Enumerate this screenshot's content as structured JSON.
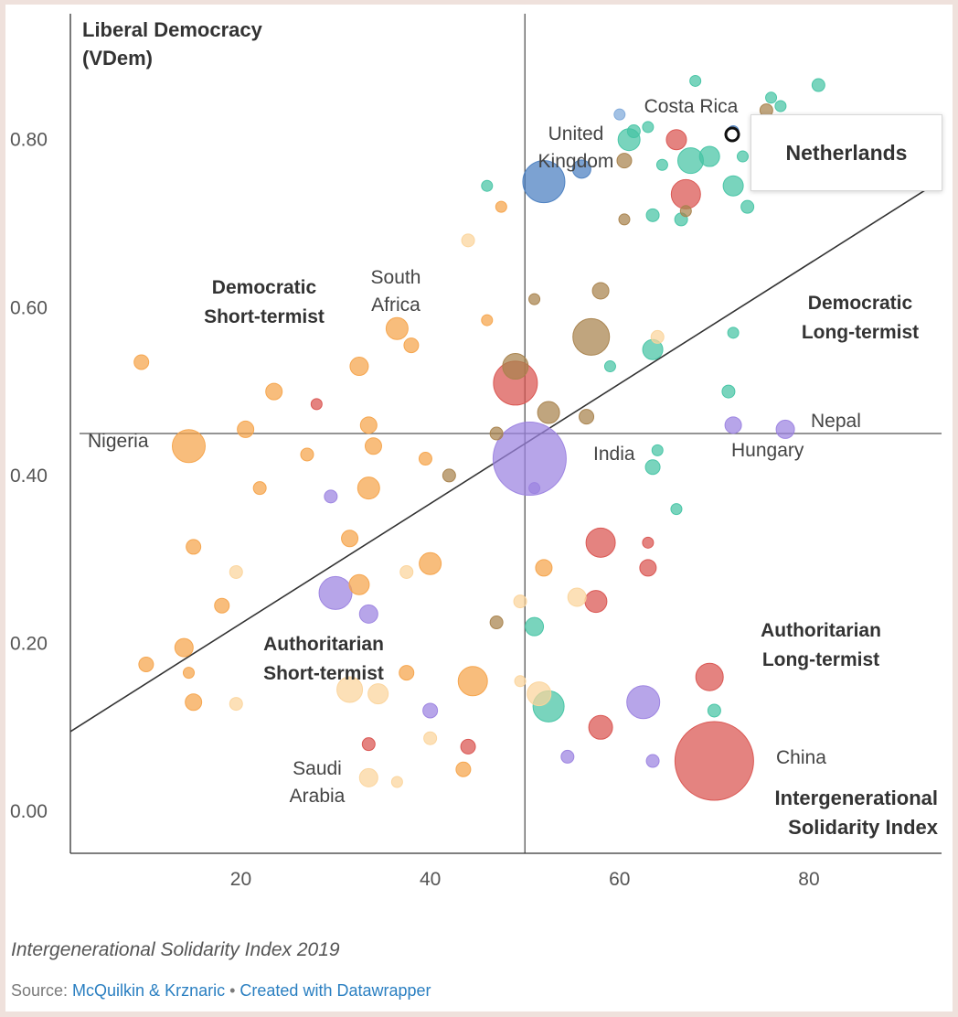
{
  "chart_data": {
    "type": "scatter",
    "ylabel_line1": "Liberal Democracy",
    "ylabel_line2": "(VDem)",
    "xlabel_line1": "Intergenerational",
    "xlabel_line2": "Solidarity Index",
    "xlim": [
      2,
      94
    ],
    "ylim": [
      -0.05,
      0.95
    ],
    "xticks": [
      20,
      40,
      60,
      80
    ],
    "yticks": [
      0.0,
      0.2,
      0.4,
      0.6,
      0.8
    ],
    "ytick_labels": [
      "0.00",
      "0.20",
      "0.40",
      "0.60",
      "0.80"
    ],
    "reference_lines": {
      "x": 50,
      "y": 0.45,
      "diagonal": [
        [
          2,
          0.095
        ],
        [
          93,
          0.745
        ]
      ]
    },
    "colors": {
      "orange": "#f5a34a",
      "light_orange": "#fbd49b",
      "teal": "#45c4a4",
      "red": "#d9534f",
      "brown": "#a8824c",
      "purple": "#9b82e0",
      "blue": "#4a7ec0",
      "light_blue": "#7ea9da"
    },
    "quadrant_labels": [
      {
        "line1": "Democratic",
        "line2": "Short-termist"
      },
      {
        "line1": "Democratic",
        "line2": "Long-termist"
      },
      {
        "line1": "Authoritarian",
        "line2": "Short-termist"
      },
      {
        "line1": "Authoritarian",
        "line2": "Long-termist"
      }
    ],
    "labeled_countries": [
      {
        "line1": "Costa Rica",
        "line2": ""
      },
      {
        "line1": "United",
        "line2": "Kingdom"
      },
      {
        "line1": "South",
        "line2": "Africa"
      },
      {
        "line1": "Nigeria",
        "line2": ""
      },
      {
        "line1": "India",
        "line2": ""
      },
      {
        "line1": "Hungary",
        "line2": ""
      },
      {
        "line1": "Nepal",
        "line2": ""
      },
      {
        "line1": "China",
        "line2": ""
      },
      {
        "line1": "Saudi",
        "line2": "Arabia"
      }
    ],
    "highlight": "Netherlands",
    "points": [
      {
        "x": 50.5,
        "y": 0.42,
        "s": 40,
        "c": "purple"
      },
      {
        "x": 70,
        "y": 0.06,
        "s": 43,
        "c": "red"
      },
      {
        "x": 52,
        "y": 0.75,
        "s": 23,
        "c": "blue"
      },
      {
        "x": 14.5,
        "y": 0.435,
        "s": 18,
        "c": "orange"
      },
      {
        "x": 57,
        "y": 0.565,
        "s": 20,
        "c": "brown"
      },
      {
        "x": 49,
        "y": 0.51,
        "s": 24,
        "c": "red"
      },
      {
        "x": 49,
        "y": 0.53,
        "s": 14,
        "c": "brown"
      },
      {
        "x": 30,
        "y": 0.26,
        "s": 18,
        "c": "purple"
      },
      {
        "x": 62.5,
        "y": 0.13,
        "s": 18,
        "c": "purple"
      },
      {
        "x": 52.5,
        "y": 0.125,
        "s": 17,
        "c": "teal"
      },
      {
        "x": 51.5,
        "y": 0.14,
        "s": 13,
        "c": "light_orange"
      },
      {
        "x": 44.5,
        "y": 0.155,
        "s": 16,
        "c": "orange"
      },
      {
        "x": 31.5,
        "y": 0.145,
        "s": 14,
        "c": "light_orange"
      },
      {
        "x": 34.5,
        "y": 0.14,
        "s": 11,
        "c": "light_orange"
      },
      {
        "x": 69.5,
        "y": 0.16,
        "s": 15,
        "c": "red"
      },
      {
        "x": 58,
        "y": 0.32,
        "s": 16,
        "c": "red"
      },
      {
        "x": 57.5,
        "y": 0.25,
        "s": 12,
        "c": "red"
      },
      {
        "x": 58,
        "y": 0.1,
        "s": 13,
        "c": "red"
      },
      {
        "x": 67,
        "y": 0.735,
        "s": 16,
        "c": "red"
      },
      {
        "x": 66,
        "y": 0.8,
        "s": 11,
        "c": "red"
      },
      {
        "x": 61,
        "y": 0.8,
        "s": 12,
        "c": "teal"
      },
      {
        "x": 67.5,
        "y": 0.775,
        "s": 14,
        "c": "teal"
      },
      {
        "x": 69.5,
        "y": 0.78,
        "s": 11,
        "c": "teal"
      },
      {
        "x": 72,
        "y": 0.745,
        "s": 11,
        "c": "teal"
      },
      {
        "x": 63.5,
        "y": 0.55,
        "s": 11,
        "c": "teal"
      },
      {
        "x": 36.5,
        "y": 0.575,
        "s": 12,
        "c": "orange"
      },
      {
        "x": 38,
        "y": 0.555,
        "s": 8,
        "c": "orange"
      },
      {
        "x": 32.5,
        "y": 0.53,
        "s": 10,
        "c": "orange"
      },
      {
        "x": 9.5,
        "y": 0.535,
        "s": 8,
        "c": "orange"
      },
      {
        "x": 23.5,
        "y": 0.5,
        "s": 9,
        "c": "orange"
      },
      {
        "x": 28,
        "y": 0.485,
        "s": 6,
        "c": "red"
      },
      {
        "x": 20.5,
        "y": 0.455,
        "s": 9,
        "c": "orange"
      },
      {
        "x": 33.5,
        "y": 0.46,
        "s": 9,
        "c": "orange"
      },
      {
        "x": 34,
        "y": 0.435,
        "s": 9,
        "c": "orange"
      },
      {
        "x": 27,
        "y": 0.425,
        "s": 7,
        "c": "orange"
      },
      {
        "x": 39.5,
        "y": 0.42,
        "s": 7,
        "c": "orange"
      },
      {
        "x": 22,
        "y": 0.385,
        "s": 7,
        "c": "orange"
      },
      {
        "x": 33.5,
        "y": 0.385,
        "s": 12,
        "c": "orange"
      },
      {
        "x": 29.5,
        "y": 0.375,
        "s": 7,
        "c": "purple"
      },
      {
        "x": 42,
        "y": 0.4,
        "s": 7,
        "c": "brown"
      },
      {
        "x": 47,
        "y": 0.45,
        "s": 7,
        "c": "brown"
      },
      {
        "x": 52.5,
        "y": 0.475,
        "s": 12,
        "c": "brown"
      },
      {
        "x": 56.5,
        "y": 0.47,
        "s": 8,
        "c": "brown"
      },
      {
        "x": 51,
        "y": 0.385,
        "s": 6,
        "c": "purple"
      },
      {
        "x": 15,
        "y": 0.315,
        "s": 8,
        "c": "orange"
      },
      {
        "x": 19.5,
        "y": 0.285,
        "s": 7,
        "c": "light_orange"
      },
      {
        "x": 31.5,
        "y": 0.325,
        "s": 9,
        "c": "orange"
      },
      {
        "x": 32.5,
        "y": 0.27,
        "s": 11,
        "c": "orange"
      },
      {
        "x": 40,
        "y": 0.295,
        "s": 12,
        "c": "orange"
      },
      {
        "x": 37.5,
        "y": 0.285,
        "s": 7,
        "c": "light_orange"
      },
      {
        "x": 52,
        "y": 0.29,
        "s": 9,
        "c": "orange"
      },
      {
        "x": 33.5,
        "y": 0.235,
        "s": 10,
        "c": "purple"
      },
      {
        "x": 18,
        "y": 0.245,
        "s": 8,
        "c": "orange"
      },
      {
        "x": 14,
        "y": 0.195,
        "s": 10,
        "c": "orange"
      },
      {
        "x": 10,
        "y": 0.175,
        "s": 8,
        "c": "orange"
      },
      {
        "x": 14.5,
        "y": 0.165,
        "s": 6,
        "c": "orange"
      },
      {
        "x": 15,
        "y": 0.13,
        "s": 9,
        "c": "orange"
      },
      {
        "x": 19.5,
        "y": 0.128,
        "s": 7,
        "c": "light_orange"
      },
      {
        "x": 37.5,
        "y": 0.165,
        "s": 8,
        "c": "orange"
      },
      {
        "x": 40,
        "y": 0.12,
        "s": 8,
        "c": "purple"
      },
      {
        "x": 49.5,
        "y": 0.155,
        "s": 6,
        "c": "light_orange"
      },
      {
        "x": 49.5,
        "y": 0.25,
        "s": 7,
        "c": "light_orange"
      },
      {
        "x": 55.5,
        "y": 0.255,
        "s": 10,
        "c": "light_orange"
      },
      {
        "x": 51,
        "y": 0.22,
        "s": 10,
        "c": "teal"
      },
      {
        "x": 47,
        "y": 0.225,
        "s": 7,
        "c": "brown"
      },
      {
        "x": 54.5,
        "y": 0.065,
        "s": 7,
        "c": "purple"
      },
      {
        "x": 63.5,
        "y": 0.06,
        "s": 7,
        "c": "purple"
      },
      {
        "x": 33.5,
        "y": 0.08,
        "s": 7,
        "c": "red"
      },
      {
        "x": 40,
        "y": 0.087,
        "s": 7,
        "c": "light_orange"
      },
      {
        "x": 44,
        "y": 0.077,
        "s": 8,
        "c": "red"
      },
      {
        "x": 43.5,
        "y": 0.05,
        "s": 8,
        "c": "orange"
      },
      {
        "x": 33.5,
        "y": 0.04,
        "s": 10,
        "c": "light_orange"
      },
      {
        "x": 36.5,
        "y": 0.035,
        "s": 6,
        "c": "light_orange"
      },
      {
        "x": 63,
        "y": 0.32,
        "s": 6,
        "c": "red"
      },
      {
        "x": 63,
        "y": 0.29,
        "s": 9,
        "c": "red"
      },
      {
        "x": 66,
        "y": 0.36,
        "s": 6,
        "c": "teal"
      },
      {
        "x": 63.5,
        "y": 0.41,
        "s": 8,
        "c": "teal"
      },
      {
        "x": 64,
        "y": 0.43,
        "s": 6,
        "c": "teal"
      },
      {
        "x": 59,
        "y": 0.53,
        "s": 6,
        "c": "teal"
      },
      {
        "x": 64,
        "y": 0.565,
        "s": 7,
        "c": "light_orange"
      },
      {
        "x": 71.5,
        "y": 0.5,
        "s": 7,
        "c": "teal"
      },
      {
        "x": 72,
        "y": 0.57,
        "s": 6,
        "c": "teal"
      },
      {
        "x": 72,
        "y": 0.46,
        "s": 9,
        "c": "purple"
      },
      {
        "x": 77.5,
        "y": 0.455,
        "s": 10,
        "c": "purple"
      },
      {
        "x": 70,
        "y": 0.12,
        "s": 7,
        "c": "teal"
      },
      {
        "x": 58,
        "y": 0.62,
        "s": 9,
        "c": "brown"
      },
      {
        "x": 51,
        "y": 0.61,
        "s": 6,
        "c": "brown"
      },
      {
        "x": 46,
        "y": 0.585,
        "s": 6,
        "c": "orange"
      },
      {
        "x": 44,
        "y": 0.68,
        "s": 7,
        "c": "light_orange"
      },
      {
        "x": 47.5,
        "y": 0.72,
        "s": 6,
        "c": "orange"
      },
      {
        "x": 46,
        "y": 0.745,
        "s": 6,
        "c": "teal"
      },
      {
        "x": 60.5,
        "y": 0.705,
        "s": 6,
        "c": "brown"
      },
      {
        "x": 63.5,
        "y": 0.71,
        "s": 7,
        "c": "teal"
      },
      {
        "x": 66.5,
        "y": 0.705,
        "s": 7,
        "c": "teal"
      },
      {
        "x": 67,
        "y": 0.715,
        "s": 6,
        "c": "brown"
      },
      {
        "x": 73.5,
        "y": 0.72,
        "s": 7,
        "c": "teal"
      },
      {
        "x": 60.5,
        "y": 0.775,
        "s": 8,
        "c": "brown"
      },
      {
        "x": 64.5,
        "y": 0.77,
        "s": 6,
        "c": "teal"
      },
      {
        "x": 56,
        "y": 0.765,
        "s": 10,
        "c": "blue"
      },
      {
        "x": 61.5,
        "y": 0.81,
        "s": 7,
        "c": "teal"
      },
      {
        "x": 63,
        "y": 0.815,
        "s": 6,
        "c": "teal"
      },
      {
        "x": 68,
        "y": 0.87,
        "s": 6,
        "c": "teal"
      },
      {
        "x": 76,
        "y": 0.85,
        "s": 6,
        "c": "teal"
      },
      {
        "x": 81,
        "y": 0.865,
        "s": 7,
        "c": "teal"
      },
      {
        "x": 77,
        "y": 0.84,
        "s": 6,
        "c": "teal"
      },
      {
        "x": 73,
        "y": 0.78,
        "s": 6,
        "c": "teal"
      },
      {
        "x": 75.5,
        "y": 0.835,
        "s": 7,
        "c": "brown"
      },
      {
        "x": 72,
        "y": 0.81,
        "s": 6,
        "c": "blue"
      },
      {
        "x": 60,
        "y": 0.83,
        "s": 6,
        "c": "light_blue"
      }
    ]
  },
  "tooltip": {
    "name": "Netherlands"
  },
  "footer": {
    "caption": "Intergenerational Solidarity Index 2019",
    "source_prefix": "Source: ",
    "source_link": "McQuilkin & Krznaric",
    "separator": " • ",
    "created_with": "Created with Datawrapper"
  }
}
